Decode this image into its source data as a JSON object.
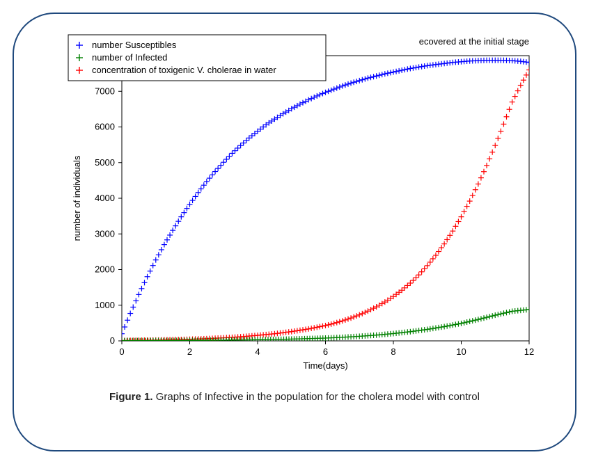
{
  "figure_caption_bold": "Figure 1.",
  "figure_caption_rest": " Graphs of Infective in the population for the cholera model with control",
  "chart": {
    "type": "scatter",
    "title_fragment_right": "ecovered at the initial stage",
    "xlabel": "Time(days)",
    "ylabel": "number of individuals",
    "xlim": [
      0,
      12
    ],
    "ylim": [
      0,
      8000
    ],
    "xticks": [
      0,
      2,
      4,
      6,
      8,
      10,
      12
    ],
    "yticks": [
      0,
      1000,
      2000,
      3000,
      4000,
      5000,
      6000,
      7000
    ],
    "background_color": "#ffffff",
    "axis_color": "#000000",
    "marker": "plus",
    "marker_size": 4,
    "line_width": 1.2,
    "legend": {
      "position": "upper-left-outside-ish",
      "border_color": "#000000",
      "bg_color": "#ffffff",
      "items": [
        {
          "label": "number Susceptibles",
          "color": "#0000ff"
        },
        {
          "label": "number of Infected",
          "color": "#008000"
        },
        {
          "label": "concentration of toxigenic V. cholerae in water",
          "color": "#ff0000"
        }
      ]
    },
    "series": [
      {
        "name": "susceptibles",
        "color": "#0000ff",
        "points": [
          [
            0,
            200
          ],
          [
            0.25,
            770
          ],
          [
            0.5,
            1300
          ],
          [
            0.75,
            1800
          ],
          [
            1,
            2270
          ],
          [
            1.25,
            2700
          ],
          [
            1.5,
            3100
          ],
          [
            1.75,
            3480
          ],
          [
            2,
            3830
          ],
          [
            2.25,
            4160
          ],
          [
            2.5,
            4470
          ],
          [
            2.75,
            4750
          ],
          [
            3,
            5010
          ],
          [
            3.25,
            5260
          ],
          [
            3.5,
            5480
          ],
          [
            3.75,
            5690
          ],
          [
            4,
            5880
          ],
          [
            4.25,
            6060
          ],
          [
            4.5,
            6220
          ],
          [
            4.75,
            6370
          ],
          [
            5,
            6510
          ],
          [
            5.25,
            6640
          ],
          [
            5.5,
            6760
          ],
          [
            5.75,
            6870
          ],
          [
            6,
            6970
          ],
          [
            6.25,
            7060
          ],
          [
            6.5,
            7150
          ],
          [
            6.75,
            7230
          ],
          [
            7,
            7300
          ],
          [
            7.25,
            7370
          ],
          [
            7.5,
            7430
          ],
          [
            7.75,
            7490
          ],
          [
            8,
            7540
          ],
          [
            8.25,
            7590
          ],
          [
            8.5,
            7640
          ],
          [
            8.75,
            7680
          ],
          [
            9,
            7720
          ],
          [
            9.25,
            7750
          ],
          [
            9.5,
            7780
          ],
          [
            9.75,
            7810
          ],
          [
            10,
            7830
          ],
          [
            10.25,
            7850
          ],
          [
            10.5,
            7860
          ],
          [
            10.75,
            7870
          ],
          [
            11,
            7870
          ],
          [
            11.25,
            7870
          ],
          [
            11.5,
            7860
          ],
          [
            11.75,
            7840
          ],
          [
            12,
            7810
          ]
        ]
      },
      {
        "name": "cholerae",
        "color": "#ff0000",
        "points": [
          [
            0,
            10
          ],
          [
            0.5,
            15
          ],
          [
            1,
            22
          ],
          [
            1.5,
            32
          ],
          [
            2,
            45
          ],
          [
            2.5,
            62
          ],
          [
            3,
            85
          ],
          [
            3.5,
            115
          ],
          [
            4,
            155
          ],
          [
            4.5,
            200
          ],
          [
            5,
            260
          ],
          [
            5.5,
            335
          ],
          [
            6,
            430
          ],
          [
            6.25,
            490
          ],
          [
            6.5,
            560
          ],
          [
            6.75,
            640
          ],
          [
            7,
            730
          ],
          [
            7.25,
            835
          ],
          [
            7.5,
            955
          ],
          [
            7.75,
            1090
          ],
          [
            8,
            1245
          ],
          [
            8.25,
            1420
          ],
          [
            8.5,
            1620
          ],
          [
            8.75,
            1850
          ],
          [
            9,
            2110
          ],
          [
            9.25,
            2400
          ],
          [
            9.5,
            2720
          ],
          [
            9.75,
            3080
          ],
          [
            10,
            3480
          ],
          [
            10.25,
            3920
          ],
          [
            10.5,
            4400
          ],
          [
            10.75,
            4920
          ],
          [
            11,
            5480
          ],
          [
            11.25,
            6080
          ],
          [
            11.5,
            6700
          ],
          [
            11.75,
            7170
          ],
          [
            12,
            7600
          ]
        ]
      },
      {
        "name": "infected",
        "color": "#008000",
        "points": [
          [
            0,
            5
          ],
          [
            1,
            8
          ],
          [
            2,
            13
          ],
          [
            3,
            20
          ],
          [
            4,
            32
          ],
          [
            5,
            50
          ],
          [
            6,
            78
          ],
          [
            6.5,
            100
          ],
          [
            7,
            128
          ],
          [
            7.5,
            162
          ],
          [
            8,
            205
          ],
          [
            8.5,
            258
          ],
          [
            9,
            322
          ],
          [
            9.5,
            400
          ],
          [
            10,
            490
          ],
          [
            10.5,
            600
          ],
          [
            11,
            720
          ],
          [
            11.5,
            830
          ],
          [
            12,
            880
          ]
        ]
      }
    ]
  },
  "frame_border_color": "#1f497d"
}
